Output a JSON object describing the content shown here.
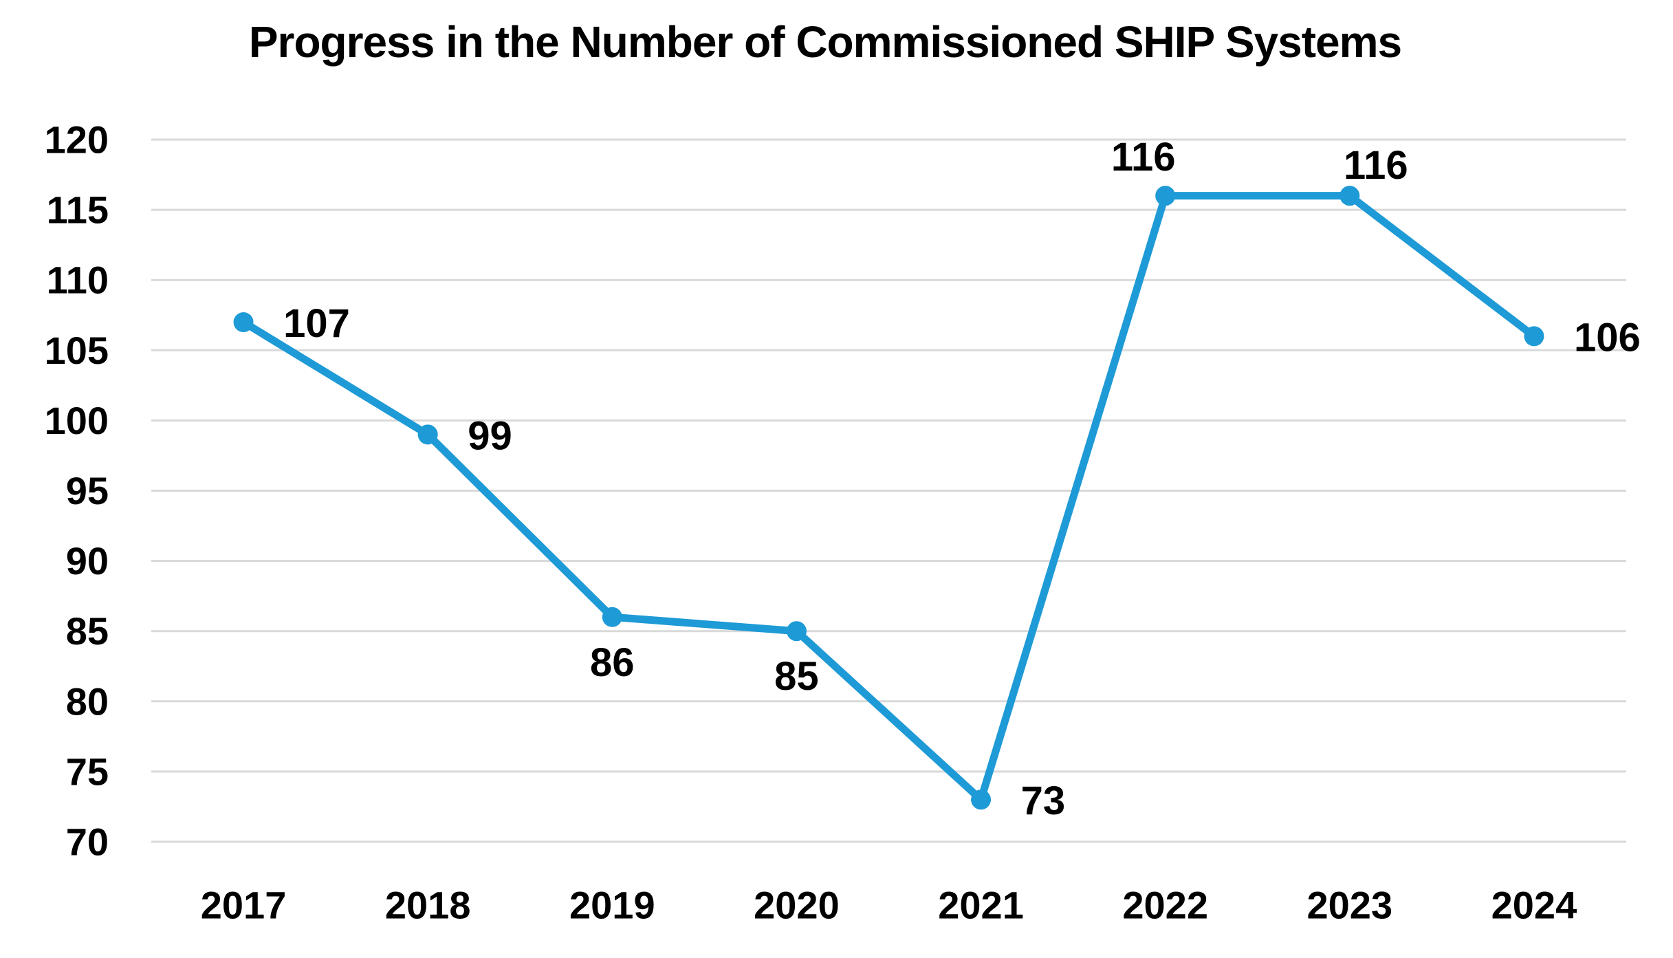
{
  "chart_data": {
    "type": "line",
    "title": "Progress in the Number of Commissioned SHIP Systems",
    "categories": [
      "2017",
      "2018",
      "2019",
      "2020",
      "2021",
      "2022",
      "2023",
      "2024"
    ],
    "values": [
      107,
      99,
      86,
      85,
      73,
      116,
      116,
      106
    ],
    "data_labels": [
      "107",
      "99",
      "86",
      "85",
      "73",
      "116",
      "116",
      "106"
    ],
    "label_positions": [
      "right",
      "right",
      "below",
      "below",
      "right",
      "above-left",
      "above-right",
      "right"
    ],
    "xlabel": "",
    "ylabel": "",
    "ylim": [
      70,
      120
    ],
    "yticks": [
      70,
      75,
      80,
      85,
      90,
      95,
      100,
      105,
      110,
      115,
      120
    ],
    "grid": "horizontal",
    "legend": "none",
    "colors": {
      "line": "#1E9AD6",
      "marker": "#1E9AD6",
      "gridline": "#D9D9D9",
      "text": "#000000",
      "background": "#FFFFFF"
    }
  }
}
